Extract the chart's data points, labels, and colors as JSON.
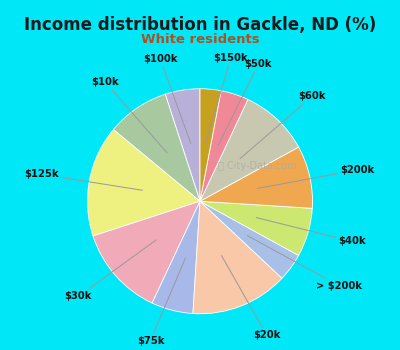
{
  "title": "Income distribution in Gackle, ND (%)",
  "subtitle": "White residents",
  "title_color": "#1a1a1a",
  "subtitle_color": "#b05020",
  "background_outer": "#00e8f8",
  "background_inner_top": "#e8f5f0",
  "background_inner_bottom": "#c8e8d8",
  "watermark": "City-Data.com",
  "labels": [
    "$100k",
    "$10k",
    "$125k",
    "$30k",
    "$75k",
    "$20k",
    "> $200k",
    "$40k",
    "$200k",
    "$60k",
    "$50k",
    "$150k"
  ],
  "values": [
    5,
    9,
    16,
    13,
    6,
    14,
    4,
    7,
    9,
    10,
    4,
    3
  ],
  "colors": [
    "#b8b0d8",
    "#a8c8a0",
    "#eef080",
    "#f0aab8",
    "#a8b8e8",
    "#f8c8a8",
    "#a8c0e8",
    "#cce870",
    "#f0a850",
    "#c8c8b0",
    "#f08898",
    "#c8a020"
  ],
  "startangle": 90,
  "figsize": [
    4.0,
    3.5
  ],
  "dpi": 100
}
